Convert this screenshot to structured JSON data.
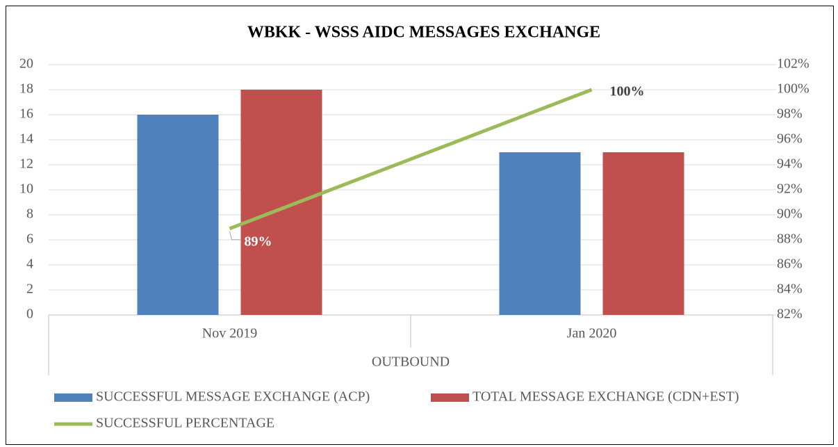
{
  "chart_data": {
    "type": "bar",
    "title": "WBKK - WSSS AIDC MESSAGES EXCHANGE",
    "categories": [
      "Nov 2019",
      "Jan 2020"
    ],
    "category_group": "OUTBOUND",
    "series": [
      {
        "name": "SUCCESSFUL MESSAGE EXCHANGE (ACP)",
        "type": "bar",
        "color": "#4f81bd",
        "values": [
          16,
          13
        ]
      },
      {
        "name": "TOTAL MESSAGE EXCHANGE (CDN+EST)",
        "type": "bar",
        "color": "#c0504d",
        "values": [
          18,
          13
        ]
      },
      {
        "name": "SUCCESSFUL PERCENTAGE",
        "type": "line",
        "axis": "y2",
        "color": "#9bbb59",
        "values": [
          88.9,
          100
        ],
        "value_labels": [
          "89%",
          "100%"
        ]
      }
    ],
    "ylim": [
      0,
      20
    ],
    "yticks": [
      0,
      2,
      4,
      6,
      8,
      10,
      12,
      14,
      16,
      18,
      20
    ],
    "y2lim": [
      82,
      102
    ],
    "y2ticks": [
      {
        "value": 82,
        "label": "82%"
      },
      {
        "value": 84,
        "label": "84%"
      },
      {
        "value": 86,
        "label": "86%"
      },
      {
        "value": 88,
        "label": "88%"
      },
      {
        "value": 90,
        "label": "90%"
      },
      {
        "value": 92,
        "label": "92%"
      },
      {
        "value": 94,
        "label": "94%"
      },
      {
        "value": 96,
        "label": "96%"
      },
      {
        "value": 98,
        "label": "98%"
      },
      {
        "value": 100,
        "label": "100%"
      },
      {
        "value": 102,
        "label": "102%"
      }
    ],
    "grid": true,
    "legend": "bottom"
  }
}
